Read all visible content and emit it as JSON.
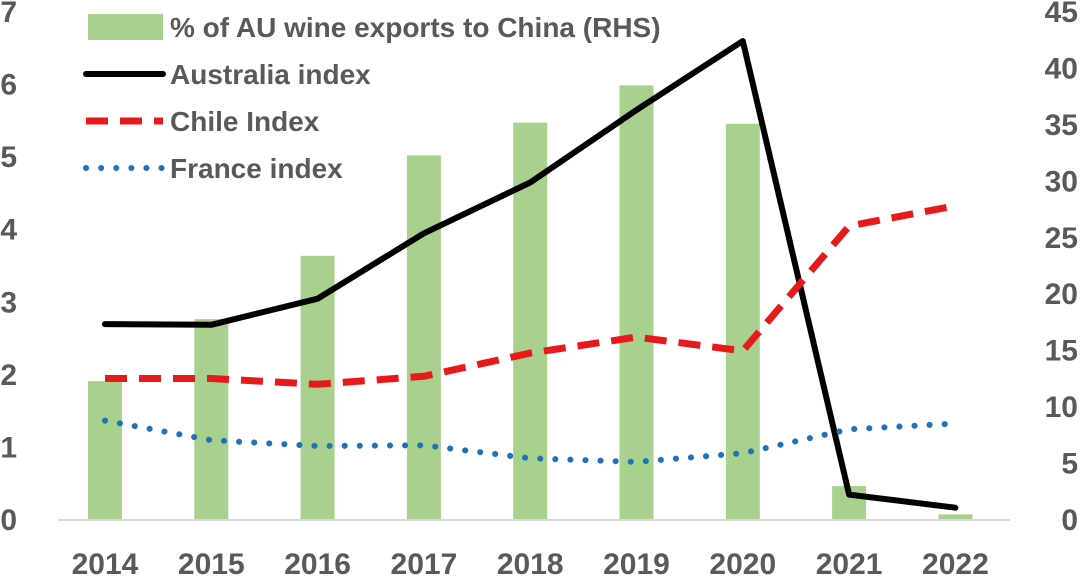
{
  "chart_data": {
    "type": "bar+line",
    "title": "",
    "categories": [
      "2014",
      "2015",
      "2016",
      "2017",
      "2018",
      "2019",
      "2020",
      "2021",
      "2022"
    ],
    "bar_series": {
      "name": "% of AU wine exports to China (RHS)",
      "axis": "right",
      "color": "#a9d18e",
      "values": [
        12.3,
        17.8,
        23.4,
        32.3,
        35.2,
        38.5,
        35.1,
        3.0,
        0.5
      ]
    },
    "line_series": [
      {
        "name": "Australia index",
        "axis": "left",
        "color": "#000000",
        "style": "solid",
        "values": [
          2.7,
          2.69,
          3.05,
          3.95,
          4.65,
          5.65,
          6.6,
          0.35,
          0.17
        ]
      },
      {
        "name": "Chile Index",
        "axis": "left",
        "color": "#e8191b",
        "style": "dashed",
        "values": [
          1.95,
          1.95,
          1.87,
          1.98,
          2.3,
          2.52,
          2.33,
          4.05,
          4.33
        ]
      },
      {
        "name": "France index",
        "axis": "left",
        "color": "#1f72b8",
        "style": "dotted",
        "values": [
          1.37,
          1.1,
          1.02,
          1.03,
          0.85,
          0.8,
          0.92,
          1.25,
          1.33
        ]
      }
    ],
    "y_left": {
      "min": 0,
      "max": 7,
      "ticks": [
        "0",
        "1",
        "2",
        "3",
        "4",
        "5",
        "6",
        "7"
      ]
    },
    "y_right": {
      "min": 0,
      "max": 45,
      "ticks": [
        "0",
        "5",
        "10",
        "15",
        "20",
        "25",
        "30",
        "35",
        "40",
        "45"
      ]
    },
    "grid": false,
    "legend_position": "top-left"
  }
}
